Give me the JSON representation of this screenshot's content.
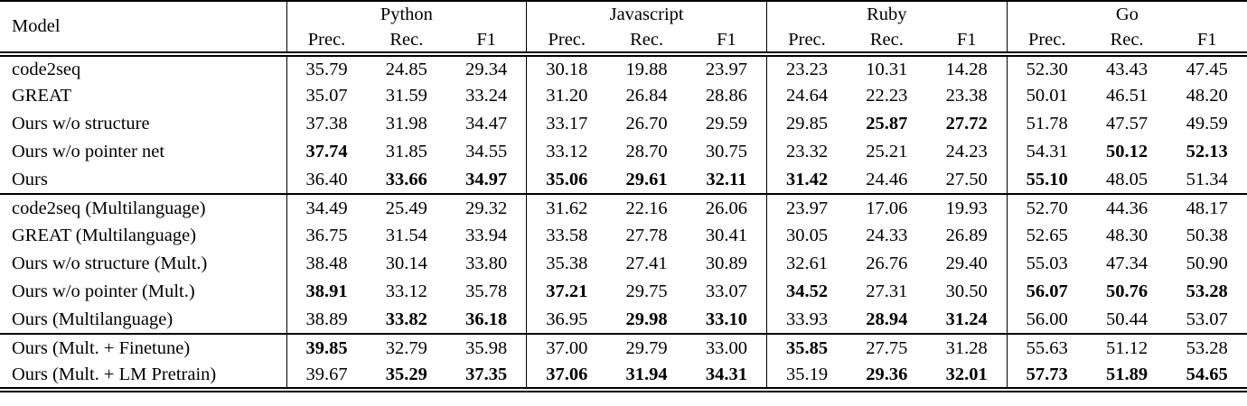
{
  "table": {
    "model_header": "Model",
    "languages": [
      "Python",
      "Javascript",
      "Ruby",
      "Go"
    ],
    "metrics": [
      "Prec.",
      "Rec.",
      "F1"
    ],
    "sections": [
      {
        "rows": [
          {
            "model": "code2seq",
            "values": [
              "35.79",
              "24.85",
              "29.34",
              "30.18",
              "19.88",
              "23.97",
              "23.23",
              "10.31",
              "14.28",
              "52.30",
              "43.43",
              "47.45"
            ],
            "bold": []
          },
          {
            "model": "GREAT",
            "values": [
              "35.07",
              "31.59",
              "33.24",
              "31.20",
              "26.84",
              "28.86",
              "24.64",
              "22.23",
              "23.38",
              "50.01",
              "46.51",
              "48.20"
            ],
            "bold": []
          },
          {
            "model": "Ours w/o structure",
            "values": [
              "37.38",
              "31.98",
              "34.47",
              "33.17",
              "26.70",
              "29.59",
              "29.85",
              "25.87",
              "27.72",
              "51.78",
              "47.57",
              "49.59"
            ],
            "bold": [
              7,
              8
            ]
          },
          {
            "model": "Ours w/o pointer net",
            "values": [
              "37.74",
              "31.85",
              "34.55",
              "33.12",
              "28.70",
              "30.75",
              "23.32",
              "25.21",
              "24.23",
              "54.31",
              "50.12",
              "52.13"
            ],
            "bold": [
              0,
              10,
              11
            ]
          },
          {
            "model": "Ours",
            "values": [
              "36.40",
              "33.66",
              "34.97",
              "35.06",
              "29.61",
              "32.11",
              "31.42",
              "24.46",
              "27.50",
              "55.10",
              "48.05",
              "51.34"
            ],
            "bold": [
              1,
              2,
              3,
              4,
              5,
              6,
              9
            ]
          }
        ]
      },
      {
        "rows": [
          {
            "model": "code2seq (Multilanguage)",
            "values": [
              "34.49",
              "25.49",
              "29.32",
              "31.62",
              "22.16",
              "26.06",
              "23.97",
              "17.06",
              "19.93",
              "52.70",
              "44.36",
              "48.17"
            ],
            "bold": []
          },
          {
            "model": "GREAT (Multilanguage)",
            "values": [
              "36.75",
              "31.54",
              "33.94",
              "33.58",
              "27.78",
              "30.41",
              "30.05",
              "24.33",
              "26.89",
              "52.65",
              "48.30",
              "50.38"
            ],
            "bold": []
          },
          {
            "model": "Ours w/o structure (Mult.)",
            "values": [
              "38.48",
              "30.14",
              "33.80",
              "35.38",
              "27.41",
              "30.89",
              "32.61",
              "26.76",
              "29.40",
              "55.03",
              "47.34",
              "50.90"
            ],
            "bold": []
          },
          {
            "model": "Ours w/o pointer (Mult.)",
            "values": [
              "38.91",
              "33.12",
              "35.78",
              "37.21",
              "29.75",
              "33.07",
              "34.52",
              "27.31",
              "30.50",
              "56.07",
              "50.76",
              "53.28"
            ],
            "bold": [
              0,
              3,
              6,
              9,
              10,
              11
            ]
          },
          {
            "model": "Ours (Multilanguage)",
            "values": [
              "38.89",
              "33.82",
              "36.18",
              "36.95",
              "29.98",
              "33.10",
              "33.93",
              "28.94",
              "31.24",
              "56.00",
              "50.44",
              "53.07"
            ],
            "bold": [
              1,
              2,
              4,
              5,
              7,
              8
            ]
          }
        ]
      },
      {
        "rows": [
          {
            "model": "Ours (Mult. + Finetune)",
            "values": [
              "39.85",
              "32.79",
              "35.98",
              "37.00",
              "29.79",
              "33.00",
              "35.85",
              "27.75",
              "31.28",
              "55.63",
              "51.12",
              "53.28"
            ],
            "bold": [
              0,
              6
            ]
          },
          {
            "model": "Ours (Mult. + LM Pretrain)",
            "values": [
              "39.67",
              "35.29",
              "37.35",
              "37.06",
              "31.94",
              "34.31",
              "35.19",
              "29.36",
              "32.01",
              "57.73",
              "51.89",
              "54.65"
            ],
            "bold": [
              1,
              2,
              3,
              4,
              5,
              7,
              8,
              9,
              10,
              11
            ]
          }
        ]
      }
    ]
  }
}
